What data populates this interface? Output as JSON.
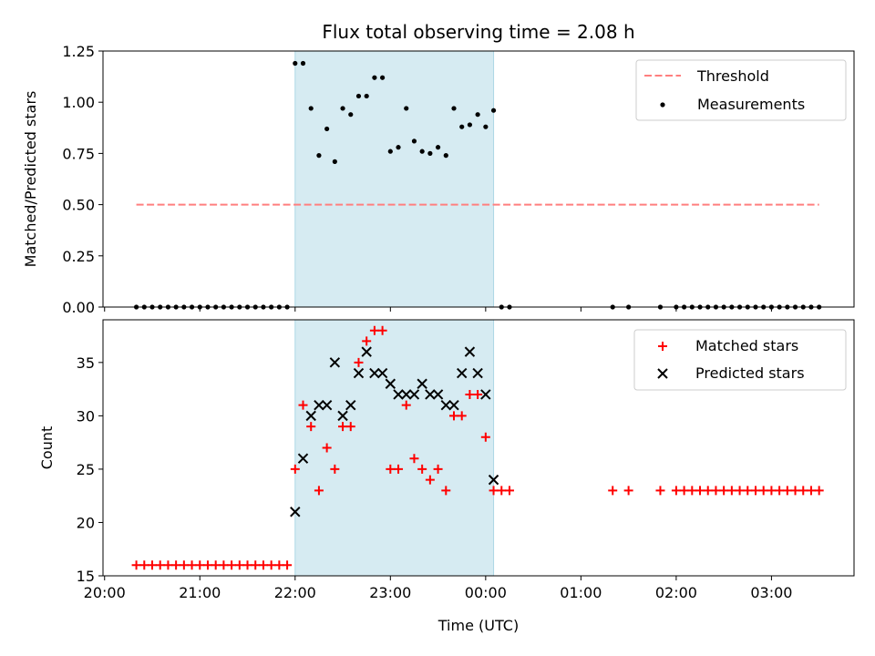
{
  "chart_data": [
    {
      "type": "scatter",
      "title": "Flux total observing time = 2.08 h",
      "xlabel": "",
      "ylabel": "Matched/Predicted stars",
      "ylim": [
        0,
        1.25
      ],
      "yticks": [
        "0.00",
        "0.25",
        "0.50",
        "0.75",
        "1.00",
        "1.25"
      ],
      "shaded_region": {
        "start": "22:00",
        "end": "00:05",
        "color": "#add8e6"
      },
      "legend_position": "upper right",
      "threshold": {
        "name": "Threshold",
        "value": 0.5,
        "x_start": "20:20",
        "x_end": "03:30",
        "color": "#ff7f7f"
      },
      "series": [
        {
          "name": "Measurements",
          "color": "#000000",
          "marker": "dot",
          "points": [
            [
              "20:20",
              0
            ],
            [
              "20:25",
              0
            ],
            [
              "20:30",
              0
            ],
            [
              "20:35",
              0
            ],
            [
              "20:40",
              0
            ],
            [
              "20:45",
              0
            ],
            [
              "20:50",
              0
            ],
            [
              "20:55",
              0
            ],
            [
              "21:00",
              0
            ],
            [
              "21:05",
              0
            ],
            [
              "21:10",
              0
            ],
            [
              "21:15",
              0
            ],
            [
              "21:20",
              0
            ],
            [
              "21:25",
              0
            ],
            [
              "21:30",
              0
            ],
            [
              "21:35",
              0
            ],
            [
              "21:40",
              0
            ],
            [
              "21:45",
              0
            ],
            [
              "21:50",
              0
            ],
            [
              "21:55",
              0
            ],
            [
              "22:00",
              1.19
            ],
            [
              "22:05",
              1.19
            ],
            [
              "22:10",
              0.97
            ],
            [
              "22:15",
              0.74
            ],
            [
              "22:20",
              0.87
            ],
            [
              "22:25",
              0.71
            ],
            [
              "22:30",
              0.97
            ],
            [
              "22:35",
              0.94
            ],
            [
              "22:40",
              1.03
            ],
            [
              "22:45",
              1.03
            ],
            [
              "22:50",
              1.12
            ],
            [
              "22:55",
              1.12
            ],
            [
              "23:00",
              0.76
            ],
            [
              "23:05",
              0.78
            ],
            [
              "23:10",
              0.97
            ],
            [
              "23:15",
              0.81
            ],
            [
              "23:20",
              0.76
            ],
            [
              "23:25",
              0.75
            ],
            [
              "23:30",
              0.78
            ],
            [
              "23:35",
              0.74
            ],
            [
              "23:40",
              0.97
            ],
            [
              "23:45",
              0.88
            ],
            [
              "23:50",
              0.89
            ],
            [
              "23:55",
              0.94
            ],
            [
              "00:00",
              0.88
            ],
            [
              "00:05",
              0.96
            ],
            [
              "00:10",
              0
            ],
            [
              "00:15",
              0
            ],
            [
              "01:20",
              0
            ],
            [
              "01:30",
              0
            ],
            [
              "01:50",
              0
            ],
            [
              "02:00",
              0
            ],
            [
              "02:05",
              0
            ],
            [
              "02:10",
              0
            ],
            [
              "02:15",
              0
            ],
            [
              "02:20",
              0
            ],
            [
              "02:25",
              0
            ],
            [
              "02:30",
              0
            ],
            [
              "02:35",
              0
            ],
            [
              "02:40",
              0
            ],
            [
              "02:45",
              0
            ],
            [
              "02:50",
              0
            ],
            [
              "02:55",
              0
            ],
            [
              "03:00",
              0
            ],
            [
              "03:05",
              0
            ],
            [
              "03:10",
              0
            ],
            [
              "03:15",
              0
            ],
            [
              "03:20",
              0
            ],
            [
              "03:25",
              0
            ],
            [
              "03:30",
              0
            ]
          ]
        }
      ]
    },
    {
      "type": "scatter",
      "title": "",
      "xlabel": "Time (UTC)",
      "ylabel": "Count",
      "ylim": [
        15,
        39
      ],
      "yticks": [
        "15",
        "20",
        "25",
        "30",
        "35"
      ],
      "xticks": [
        "20:00",
        "21:00",
        "22:00",
        "23:00",
        "00:00",
        "01:00",
        "02:00",
        "03:00"
      ],
      "shaded_region": {
        "start": "22:00",
        "end": "00:05",
        "color": "#add8e6"
      },
      "legend_position": "upper right",
      "series": [
        {
          "name": "Matched stars",
          "color": "#ff0000",
          "marker": "plus",
          "points": [
            [
              "20:20",
              16
            ],
            [
              "20:25",
              16
            ],
            [
              "20:30",
              16
            ],
            [
              "20:35",
              16
            ],
            [
              "20:40",
              16
            ],
            [
              "20:45",
              16
            ],
            [
              "20:50",
              16
            ],
            [
              "20:55",
              16
            ],
            [
              "21:00",
              16
            ],
            [
              "21:05",
              16
            ],
            [
              "21:10",
              16
            ],
            [
              "21:15",
              16
            ],
            [
              "21:20",
              16
            ],
            [
              "21:25",
              16
            ],
            [
              "21:30",
              16
            ],
            [
              "21:35",
              16
            ],
            [
              "21:40",
              16
            ],
            [
              "21:45",
              16
            ],
            [
              "21:50",
              16
            ],
            [
              "21:55",
              16
            ],
            [
              "22:00",
              25
            ],
            [
              "22:05",
              31
            ],
            [
              "22:10",
              29
            ],
            [
              "22:15",
              23
            ],
            [
              "22:20",
              27
            ],
            [
              "22:25",
              25
            ],
            [
              "22:30",
              29
            ],
            [
              "22:35",
              29
            ],
            [
              "22:40",
              35
            ],
            [
              "22:45",
              37
            ],
            [
              "22:50",
              38
            ],
            [
              "22:55",
              38
            ],
            [
              "23:00",
              25
            ],
            [
              "23:05",
              25
            ],
            [
              "23:10",
              31
            ],
            [
              "23:15",
              26
            ],
            [
              "23:20",
              25
            ],
            [
              "23:25",
              24
            ],
            [
              "23:30",
              25
            ],
            [
              "23:35",
              23
            ],
            [
              "23:40",
              30
            ],
            [
              "23:45",
              30
            ],
            [
              "23:50",
              32
            ],
            [
              "23:55",
              32
            ],
            [
              "00:00",
              28
            ],
            [
              "00:05",
              23
            ],
            [
              "00:10",
              23
            ],
            [
              "00:15",
              23
            ],
            [
              "01:20",
              23
            ],
            [
              "01:30",
              23
            ],
            [
              "01:50",
              23
            ],
            [
              "02:00",
              23
            ],
            [
              "02:05",
              23
            ],
            [
              "02:10",
              23
            ],
            [
              "02:15",
              23
            ],
            [
              "02:20",
              23
            ],
            [
              "02:25",
              23
            ],
            [
              "02:30",
              23
            ],
            [
              "02:35",
              23
            ],
            [
              "02:40",
              23
            ],
            [
              "02:45",
              23
            ],
            [
              "02:50",
              23
            ],
            [
              "02:55",
              23
            ],
            [
              "03:00",
              23
            ],
            [
              "03:05",
              23
            ],
            [
              "03:10",
              23
            ],
            [
              "03:15",
              23
            ],
            [
              "03:20",
              23
            ],
            [
              "03:25",
              23
            ],
            [
              "03:30",
              23
            ]
          ]
        },
        {
          "name": "Predicted stars",
          "color": "#000000",
          "marker": "x",
          "points": [
            [
              "22:00",
              21
            ],
            [
              "22:05",
              26
            ],
            [
              "22:10",
              30
            ],
            [
              "22:15",
              31
            ],
            [
              "22:20",
              31
            ],
            [
              "22:25",
              35
            ],
            [
              "22:30",
              30
            ],
            [
              "22:35",
              31
            ],
            [
              "22:40",
              34
            ],
            [
              "22:45",
              36
            ],
            [
              "22:50",
              34
            ],
            [
              "22:55",
              34
            ],
            [
              "23:00",
              33
            ],
            [
              "23:05",
              32
            ],
            [
              "23:10",
              32
            ],
            [
              "23:15",
              32
            ],
            [
              "23:20",
              33
            ],
            [
              "23:25",
              32
            ],
            [
              "23:30",
              32
            ],
            [
              "23:35",
              31
            ],
            [
              "23:40",
              31
            ],
            [
              "23:45",
              34
            ],
            [
              "23:50",
              36
            ],
            [
              "23:55",
              34
            ],
            [
              "00:00",
              32
            ],
            [
              "00:05",
              24
            ]
          ]
        }
      ]
    }
  ]
}
